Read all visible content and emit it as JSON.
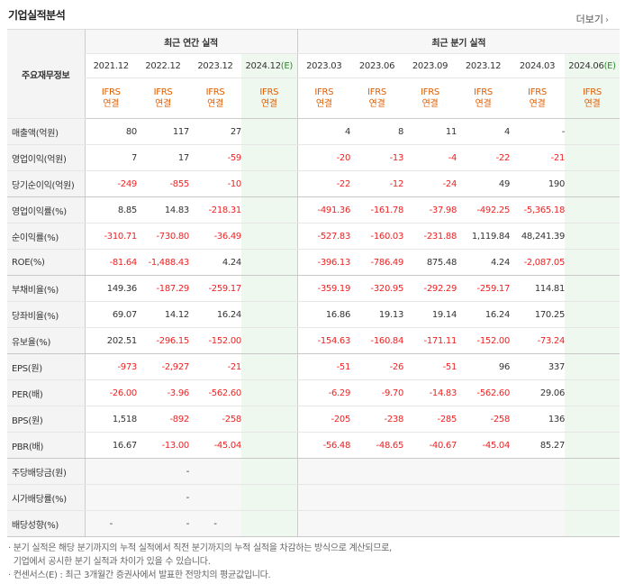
{
  "title": "기업실적분석",
  "more_label": "더보기",
  "header": {
    "row_label": "주요재무정보",
    "annual_group": "최근 연간 실적",
    "quarter_group": "최근 분기 실적",
    "annual_dates": [
      "2021.12",
      "2022.12",
      "2023.12",
      "2024.12(E)"
    ],
    "quarter_dates": [
      "2023.03",
      "2023.06",
      "2023.09",
      "2023.12",
      "2024.03",
      "2024.06(E)"
    ],
    "ifrs_line1": "IFRS",
    "ifrs_line2": "연결"
  },
  "rows": [
    {
      "label": "매출액(억원)",
      "annual": [
        "80",
        "117",
        "27",
        ""
      ],
      "quarter": [
        "4",
        "8",
        "11",
        "4",
        "-",
        ""
      ]
    },
    {
      "label": "영업이익(억원)",
      "annual": [
        "7",
        "17",
        "-59",
        ""
      ],
      "quarter": [
        "-20",
        "-13",
        "-4",
        "-22",
        "-21",
        ""
      ]
    },
    {
      "label": "당기순이익(억원)",
      "annual": [
        "-249",
        "-855",
        "-10",
        ""
      ],
      "quarter": [
        "-22",
        "-12",
        "-24",
        "49",
        "190",
        ""
      ]
    },
    {
      "label": "영업이익률(%)",
      "annual": [
        "8.85",
        "14.83",
        "-218.31",
        ""
      ],
      "quarter": [
        "-491.36",
        "-161.78",
        "-37.98",
        "-492.25",
        "-5,365.18",
        ""
      ]
    },
    {
      "label": "순이익률(%)",
      "annual": [
        "-310.71",
        "-730.80",
        "-36.49",
        ""
      ],
      "quarter": [
        "-527.83",
        "-160.03",
        "-231.88",
        "1,119.84",
        "48,241.39",
        ""
      ]
    },
    {
      "label": "ROE(%)",
      "annual": [
        "-81.64",
        "-1,488.43",
        "4.24",
        ""
      ],
      "quarter": [
        "-396.13",
        "-786.49",
        "875.48",
        "4.24",
        "-2,087.05",
        ""
      ]
    },
    {
      "label": "부채비율(%)",
      "annual": [
        "149.36",
        "-187.29",
        "-259.17",
        ""
      ],
      "quarter": [
        "-359.19",
        "-320.95",
        "-292.29",
        "-259.17",
        "114.81",
        ""
      ]
    },
    {
      "label": "당좌비율(%)",
      "annual": [
        "69.07",
        "14.12",
        "16.24",
        ""
      ],
      "quarter": [
        "16.86",
        "19.13",
        "19.14",
        "16.24",
        "170.25",
        ""
      ]
    },
    {
      "label": "유보율(%)",
      "annual": [
        "202.51",
        "-296.15",
        "-152.00",
        ""
      ],
      "quarter": [
        "-154.63",
        "-160.84",
        "-171.11",
        "-152.00",
        "-73.24",
        ""
      ]
    },
    {
      "label": "EPS(원)",
      "annual": [
        "-973",
        "-2,927",
        "-21",
        ""
      ],
      "quarter": [
        "-51",
        "-26",
        "-51",
        "96",
        "337",
        ""
      ]
    },
    {
      "label": "PER(배)",
      "annual": [
        "-26.00",
        "-3.96",
        "-562.60",
        ""
      ],
      "quarter": [
        "-6.29",
        "-9.70",
        "-14.83",
        "-562.60",
        "29.06",
        ""
      ]
    },
    {
      "label": "BPS(원)",
      "annual": [
        "1,518",
        "-892",
        "-258",
        ""
      ],
      "quarter": [
        "-205",
        "-238",
        "-285",
        "-258",
        "136",
        ""
      ]
    },
    {
      "label": "PBR(배)",
      "annual": [
        "16.67",
        "-13.00",
        "-45.04",
        ""
      ],
      "quarter": [
        "-56.48",
        "-48.65",
        "-40.67",
        "-45.04",
        "85.27",
        ""
      ]
    },
    {
      "label": "주당배당금(원)",
      "annual": [
        "",
        "-",
        "",
        ""
      ],
      "quarter": [
        "",
        "",
        "",
        "",
        "",
        ""
      ]
    },
    {
      "label": "시가배당률(%)",
      "annual": [
        "",
        "-",
        "",
        ""
      ],
      "quarter": [
        "",
        "",
        "",
        "",
        "",
        ""
      ]
    },
    {
      "label": "배당성향(%)",
      "annual": [
        "-",
        "-",
        "-",
        ""
      ],
      "quarter": [
        "",
        "",
        "",
        "",
        "",
        ""
      ]
    }
  ],
  "notes": [
    "· 분기 실적은 해당 분기까지의 누적 실적에서 직전 분기까지의 누적 실적을 차감하는 방식으로 계산되므로,",
    "  기업에서 공시한 분기 실적과 차이가 있을 수 있습니다.",
    "· 컨센서스(E) : 최근 3개월간 증권사에서 발표한 전망치의 평균값입니다."
  ],
  "colors": {
    "negative": "#e22222",
    "ifrs": "#e05d00",
    "estimate_bg": "#eef8ef",
    "estimate_text": "#2b8a2b"
  }
}
